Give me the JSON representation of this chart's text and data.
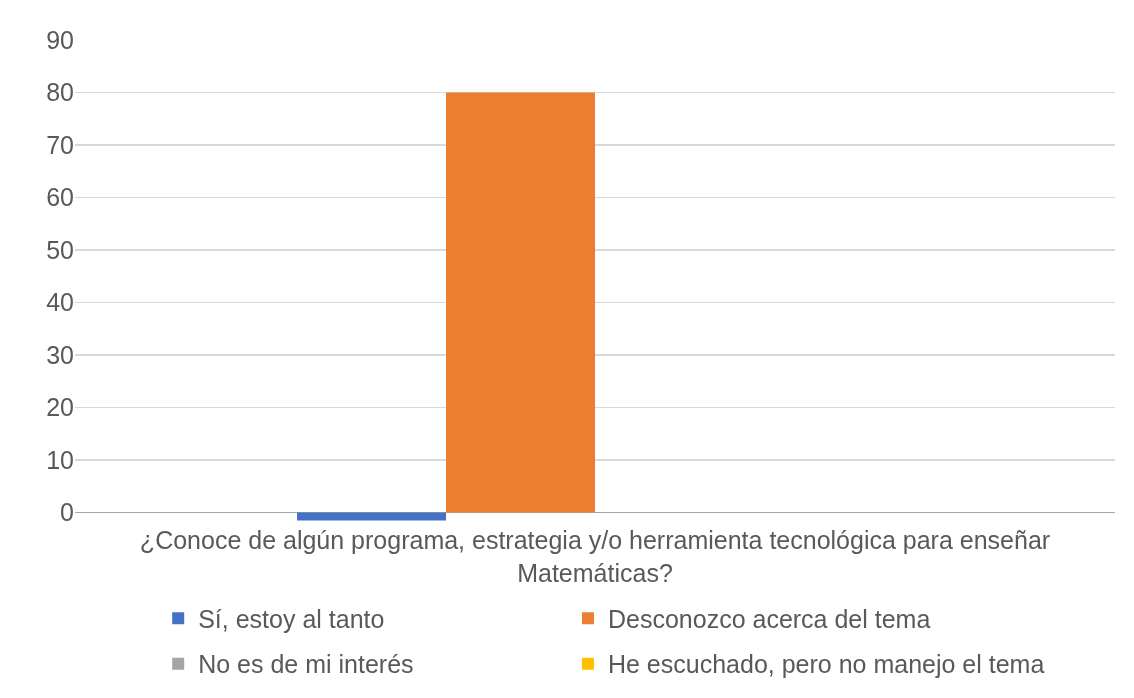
{
  "chart_data": {
    "type": "bar",
    "categories": [
      "¿Conoce de algún programa, estrategia y/o herramienta tecnológica para enseñar Matemáticas?"
    ],
    "series": [
      {
        "name": "Sí, estoy al tanto",
        "color": "#4472c4",
        "values": [
          -1.5
        ]
      },
      {
        "name": "Desconozco acerca del tema",
        "color": "#ed7d31",
        "values": [
          80
        ]
      },
      {
        "name": "No es de mi interés",
        "color": "#a5a5a5",
        "values": [
          0
        ]
      },
      {
        "name": "He escuchado, pero no manejo el tema",
        "color": "#ffc000",
        "values": [
          0
        ]
      }
    ],
    "ylim": [
      -2,
      90
    ],
    "yticks": [
      0,
      10,
      20,
      30,
      40,
      50,
      60,
      70,
      80,
      90
    ],
    "grid": "y",
    "legend": "bottom"
  }
}
